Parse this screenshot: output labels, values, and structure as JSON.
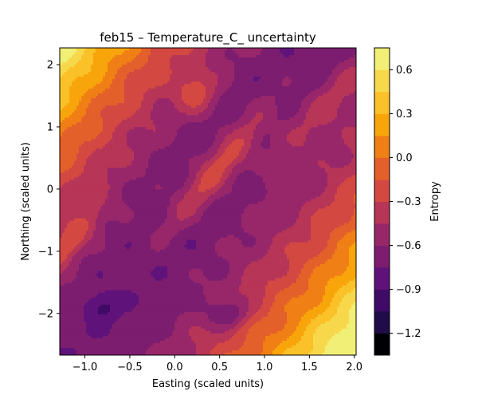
{
  "chart_data": {
    "type": "contour",
    "title": "feb15 – Temperature_C_ uncertainty",
    "xlabel": "Easting (scaled units)",
    "ylabel": "Northing (scaled units)",
    "xlim": [
      -1.28,
      2.02
    ],
    "ylim": [
      -2.67,
      2.27
    ],
    "x_ticks": [
      -1.0,
      -0.5,
      0.0,
      0.5,
      1.0,
      1.5,
      2.0
    ],
    "x_tick_labels": [
      "−1.0",
      "−0.5",
      "0.0",
      "0.5",
      "1.0",
      "1.5",
      "2.0"
    ],
    "y_ticks": [
      -2,
      -1,
      0,
      1,
      2
    ],
    "y_tick_labels": [
      "−2",
      "−1",
      "0",
      "1",
      "2"
    ],
    "colorbar": {
      "label": "Entropy",
      "levels": [
        -1.35,
        -1.2,
        -1.05,
        -0.9,
        -0.75,
        -0.6,
        -0.45,
        -0.3,
        -0.15,
        0.0,
        0.15,
        0.3,
        0.45,
        0.6,
        0.75
      ],
      "ticks": [
        -1.2,
        -0.9,
        -0.6,
        -0.3,
        0.0,
        0.3,
        0.6
      ],
      "tick_labels": [
        "−1.2",
        "−0.9",
        "−0.6",
        "−0.3",
        "0.0",
        "0.3",
        "0.6"
      ],
      "colors": [
        "#000004",
        "#1f0c48",
        "#400a67",
        "#5f137a",
        "#7c1d6f",
        "#98276a",
        "#b73557",
        "#d44842",
        "#e4602a",
        "#f07f15",
        "#f8a50b",
        "#fac128",
        "#f8d84b",
        "#f1ef75"
      ]
    },
    "colormap": "inferno",
    "grid": false
  }
}
